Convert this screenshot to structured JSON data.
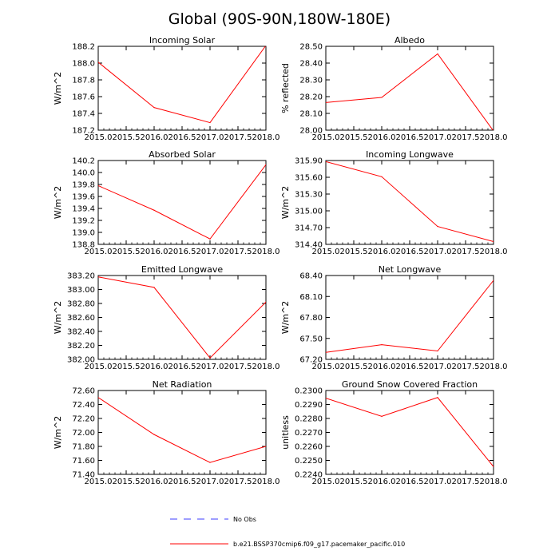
{
  "title": "Global (90S-90N,180W-180E)",
  "colors": {
    "model": "#ff0000",
    "obs": "#3c3cff",
    "frame": "#000000"
  },
  "legend": {
    "obs_label": "No Obs",
    "model_label": "b.e21.BSSP370cmip6.f09_g17.pacemaker_pacific.010"
  },
  "chart_data": [
    {
      "type": "line",
      "title": "Incoming Solar",
      "ylabel": "W/m^2",
      "x": [
        2015.0,
        2016.0,
        2017.0,
        2018.0
      ],
      "values": [
        188.01,
        187.47,
        187.29,
        188.21
      ],
      "xlim": [
        2015.0,
        2018.0
      ],
      "ylim": [
        187.2,
        188.2
      ],
      "xticks": [
        "2015.0",
        "2015.5",
        "2016.0",
        "2016.5",
        "2017.0",
        "2017.5",
        "2018.0"
      ],
      "yticks": [
        "187.2",
        "187.4",
        "187.6",
        "187.8",
        "188.0",
        "188.2"
      ]
    },
    {
      "type": "line",
      "title": "Albedo",
      "ylabel": "% reflected",
      "x": [
        2015.0,
        2016.0,
        2017.0,
        2018.0
      ],
      "values": [
        28.165,
        28.195,
        28.455,
        27.995
      ],
      "xlim": [
        2015.0,
        2018.0
      ],
      "ylim": [
        28.0,
        28.5
      ],
      "xticks": [
        "2015.0",
        "2015.5",
        "2016.0",
        "2016.5",
        "2017.0",
        "2017.5",
        "2018.0"
      ],
      "yticks": [
        "28.00",
        "28.10",
        "28.20",
        "28.30",
        "28.40",
        "28.50"
      ]
    },
    {
      "type": "line",
      "title": "Absorbed Solar",
      "ylabel": "W/m^2",
      "x": [
        2015.0,
        2016.0,
        2017.0,
        2018.0
      ],
      "values": [
        139.78,
        139.37,
        138.89,
        140.13
      ],
      "xlim": [
        2015.0,
        2018.0
      ],
      "ylim": [
        138.8,
        140.2
      ],
      "xticks": [
        "2015.0",
        "2015.5",
        "2016.0",
        "2016.5",
        "2017.0",
        "2017.5",
        "2018.0"
      ],
      "yticks": [
        "138.8",
        "139.0",
        "139.2",
        "139.4",
        "139.6",
        "139.8",
        "140.0",
        "140.2"
      ]
    },
    {
      "type": "line",
      "title": "Incoming Longwave",
      "ylabel": "W/m^2",
      "x": [
        2015.0,
        2016.0,
        2017.0,
        2018.0
      ],
      "values": [
        315.88,
        315.61,
        314.72,
        314.45
      ],
      "xlim": [
        2015.0,
        2018.0
      ],
      "ylim": [
        314.4,
        315.9
      ],
      "xticks": [
        "2015.0",
        "2015.5",
        "2016.0",
        "2016.5",
        "2017.0",
        "2017.5",
        "2018.0"
      ],
      "yticks": [
        "314.40",
        "314.70",
        "315.00",
        "315.30",
        "315.60",
        "315.90"
      ]
    },
    {
      "type": "line",
      "title": "Emitted Longwave",
      "ylabel": "W/m^2",
      "x": [
        2015.0,
        2016.0,
        2017.0,
        2018.0
      ],
      "values": [
        383.18,
        383.03,
        382.02,
        382.82
      ],
      "xlim": [
        2015.0,
        2018.0
      ],
      "ylim": [
        382.0,
        383.2
      ],
      "xticks": [
        "2015.0",
        "2015.5",
        "2016.0",
        "2016.5",
        "2017.0",
        "2017.5",
        "2018.0"
      ],
      "yticks": [
        "382.00",
        "382.20",
        "382.40",
        "382.60",
        "382.80",
        "383.00",
        "383.20"
      ]
    },
    {
      "type": "line",
      "title": "Net Longwave",
      "ylabel": "W/m^2",
      "x": [
        2015.0,
        2016.0,
        2017.0,
        2018.0
      ],
      "values": [
        67.3,
        67.41,
        67.32,
        68.33
      ],
      "xlim": [
        2015.0,
        2018.0
      ],
      "ylim": [
        67.2,
        68.4
      ],
      "xticks": [
        "2015.0",
        "2015.5",
        "2016.0",
        "2016.5",
        "2017.0",
        "2017.5",
        "2018.0"
      ],
      "yticks": [
        "67.20",
        "67.50",
        "67.80",
        "68.10",
        "68.40"
      ]
    },
    {
      "type": "line",
      "title": "Net Radiation",
      "ylabel": "W/m^2",
      "x": [
        2015.0,
        2016.0,
        2017.0,
        2018.0
      ],
      "values": [
        72.5,
        71.97,
        71.57,
        71.8
      ],
      "xlim": [
        2015.0,
        2018.0
      ],
      "ylim": [
        71.4,
        72.6
      ],
      "xticks": [
        "2015.0",
        "2015.5",
        "2016.0",
        "2016.5",
        "2017.0",
        "2017.5",
        "2018.0"
      ],
      "yticks": [
        "71.40",
        "71.60",
        "71.80",
        "72.00",
        "72.20",
        "72.40",
        "72.60"
      ]
    },
    {
      "type": "line",
      "title": "Ground Snow Covered Fraction",
      "ylabel": "unitless",
      "x": [
        2015.0,
        2016.0,
        2017.0,
        2018.0
      ],
      "values": [
        0.22945,
        0.22815,
        0.2295,
        0.22455
      ],
      "xlim": [
        2015.0,
        2018.0
      ],
      "ylim": [
        0.224,
        0.23
      ],
      "xticks": [
        "2015.0",
        "2015.5",
        "2016.0",
        "2016.5",
        "2017.0",
        "2017.5",
        "2018.0"
      ],
      "yticks": [
        "0.2240",
        "0.2250",
        "0.2260",
        "0.2270",
        "0.2280",
        "0.2290",
        "0.2300"
      ]
    }
  ]
}
